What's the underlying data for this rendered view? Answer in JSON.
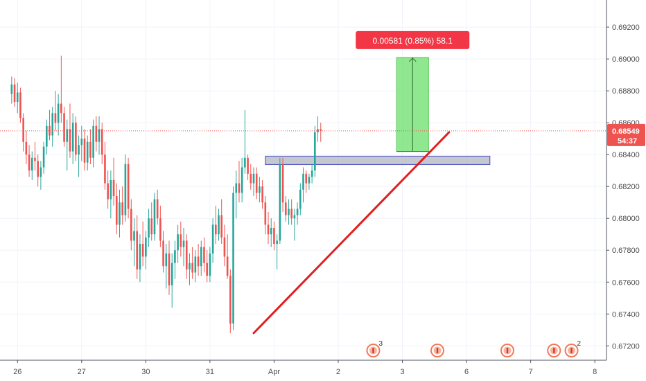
{
  "chart_data": {
    "type": "candlestick",
    "title": "",
    "y_ticks": [
      0.692,
      0.69,
      0.688,
      0.686,
      0.684,
      0.682,
      0.68,
      0.678,
      0.676,
      0.674,
      0.672
    ],
    "y_tick_labels": [
      "0.69200",
      "0.69000",
      "0.68800",
      "0.68600",
      "0.68400",
      "0.68200",
      "0.68000",
      "0.67800",
      "0.67600",
      "0.67400",
      "0.67200"
    ],
    "ylim": [
      0.6711,
      0.6937
    ],
    "x_labels": [
      {
        "label": "26",
        "index": 2
      },
      {
        "label": "27",
        "index": 24
      },
      {
        "label": "30",
        "index": 46
      },
      {
        "label": "31",
        "index": 68
      },
      {
        "label": "Apr",
        "index": 90
      },
      {
        "label": "2",
        "index": 112
      },
      {
        "label": "3",
        "index": 134
      },
      {
        "label": "6",
        "index": 156
      },
      {
        "label": "7",
        "index": 178
      },
      {
        "label": "8",
        "index": 200
      }
    ],
    "x_range": [
      -4,
      204
    ],
    "current_price": 0.68549,
    "current_price_label": "0.68549",
    "countdown_label": "54:37",
    "colors": {
      "up": "#26a69a",
      "down": "#ef5350",
      "trendline": "#e01f1f",
      "zone_fill": "#b2b5be",
      "zone_border": "#5b5fc7",
      "measure_fill": "#7be37b",
      "measure_label_bg": "#f23645",
      "price_line": "#ef5350"
    },
    "support_zone": {
      "x_start": 87,
      "x_end": 164,
      "price_top": 0.6839,
      "price_bottom": 0.68338
    },
    "trendline": {
      "x1": 83,
      "y1": 0.6728,
      "x2": 150,
      "y2": 0.6854
    },
    "measure": {
      "x_start": 132,
      "x_end": 143,
      "price_low": 0.6842,
      "price_high": 0.6901,
      "label": "0.00581 (0.85%) 58.1"
    },
    "events": [
      {
        "index": 124,
        "count": "3"
      },
      {
        "index": 146,
        "count": ""
      },
      {
        "index": 170,
        "count": ""
      },
      {
        "index": 186,
        "count": ""
      },
      {
        "index": 192,
        "count": "2"
      }
    ],
    "candles": [
      [
        0.6878,
        0.6889,
        0.6872,
        0.6884
      ],
      [
        0.6884,
        0.6888,
        0.687,
        0.6873
      ],
      [
        0.6873,
        0.6885,
        0.6866,
        0.6879
      ],
      [
        0.6879,
        0.6882,
        0.686,
        0.6863
      ],
      [
        0.6863,
        0.6866,
        0.6842,
        0.6848
      ],
      [
        0.6848,
        0.6855,
        0.6834,
        0.684
      ],
      [
        0.684,
        0.6846,
        0.6826,
        0.683
      ],
      [
        0.683,
        0.6842,
        0.6824,
        0.6838
      ],
      [
        0.6838,
        0.6848,
        0.683,
        0.6836
      ],
      [
        0.6836,
        0.684,
        0.682,
        0.6826
      ],
      [
        0.6826,
        0.6836,
        0.6818,
        0.6832
      ],
      [
        0.6832,
        0.6848,
        0.6828,
        0.6845
      ],
      [
        0.6845,
        0.6862,
        0.684,
        0.6858
      ],
      [
        0.6858,
        0.6868,
        0.6849,
        0.6852
      ],
      [
        0.6852,
        0.687,
        0.6845,
        0.6866
      ],
      [
        0.6866,
        0.688,
        0.6855,
        0.686
      ],
      [
        0.686,
        0.6878,
        0.6852,
        0.6872
      ],
      [
        0.6872,
        0.6902,
        0.686,
        0.6866
      ],
      [
        0.6866,
        0.687,
        0.6845,
        0.6848
      ],
      [
        0.6848,
        0.6862,
        0.683,
        0.6856
      ],
      [
        0.6856,
        0.6872,
        0.6838,
        0.6842
      ],
      [
        0.6842,
        0.6866,
        0.6834,
        0.686
      ],
      [
        0.686,
        0.6864,
        0.6836,
        0.684
      ],
      [
        0.684,
        0.6852,
        0.6826,
        0.6846
      ],
      [
        0.6846,
        0.6858,
        0.6836,
        0.685
      ],
      [
        0.685,
        0.6856,
        0.683,
        0.6835
      ],
      [
        0.6835,
        0.6852,
        0.683,
        0.6848
      ],
      [
        0.6848,
        0.6856,
        0.6834,
        0.6838
      ],
      [
        0.6838,
        0.6862,
        0.6832,
        0.6858
      ],
      [
        0.6858,
        0.6864,
        0.6842,
        0.6848
      ],
      [
        0.6848,
        0.6864,
        0.684,
        0.6856
      ],
      [
        0.6856,
        0.686,
        0.6834,
        0.684
      ],
      [
        0.684,
        0.6848,
        0.6818,
        0.6822
      ],
      [
        0.6822,
        0.683,
        0.6806,
        0.6812
      ],
      [
        0.6812,
        0.683,
        0.68,
        0.6824
      ],
      [
        0.6824,
        0.6838,
        0.6808,
        0.6814
      ],
      [
        0.6814,
        0.6822,
        0.679,
        0.6796
      ],
      [
        0.6796,
        0.6818,
        0.6788,
        0.681
      ],
      [
        0.681,
        0.682,
        0.6796,
        0.6802
      ],
      [
        0.6802,
        0.684,
        0.6798,
        0.6834
      ],
      [
        0.6834,
        0.6838,
        0.68,
        0.6806
      ],
      [
        0.6806,
        0.6812,
        0.678,
        0.6786
      ],
      [
        0.6786,
        0.68,
        0.677,
        0.6792
      ],
      [
        0.6792,
        0.6802,
        0.6762,
        0.6768
      ],
      [
        0.6768,
        0.679,
        0.676,
        0.6784
      ],
      [
        0.6784,
        0.6798,
        0.677,
        0.6776
      ],
      [
        0.6776,
        0.6792,
        0.6768,
        0.6788
      ],
      [
        0.6788,
        0.6806,
        0.6782,
        0.68
      ],
      [
        0.68,
        0.681,
        0.6786,
        0.679
      ],
      [
        0.679,
        0.6816,
        0.6786,
        0.6812
      ],
      [
        0.6812,
        0.6818,
        0.6796,
        0.68
      ],
      [
        0.68,
        0.6808,
        0.6782,
        0.6786
      ],
      [
        0.6786,
        0.6792,
        0.6766,
        0.677
      ],
      [
        0.677,
        0.6784,
        0.6756,
        0.6778
      ],
      [
        0.6778,
        0.6786,
        0.6752,
        0.6758
      ],
      [
        0.6758,
        0.6778,
        0.6744,
        0.6772
      ],
      [
        0.6772,
        0.6786,
        0.6762,
        0.678
      ],
      [
        0.678,
        0.6796,
        0.6772,
        0.679
      ],
      [
        0.679,
        0.6798,
        0.6776,
        0.6782
      ],
      [
        0.6782,
        0.6794,
        0.677,
        0.6786
      ],
      [
        0.6786,
        0.679,
        0.6762,
        0.6768
      ],
      [
        0.6768,
        0.6778,
        0.6758,
        0.6772
      ],
      [
        0.6772,
        0.6782,
        0.6762,
        0.6766
      ],
      [
        0.6766,
        0.678,
        0.676,
        0.6776
      ],
      [
        0.6776,
        0.6784,
        0.6764,
        0.677
      ],
      [
        0.677,
        0.6786,
        0.6764,
        0.6782
      ],
      [
        0.6782,
        0.6788,
        0.6766,
        0.6772
      ],
      [
        0.6772,
        0.678,
        0.676,
        0.6764
      ],
      [
        0.6764,
        0.6782,
        0.676,
        0.6778
      ],
      [
        0.6778,
        0.68,
        0.6772,
        0.6796
      ],
      [
        0.6796,
        0.6808,
        0.6784,
        0.679
      ],
      [
        0.679,
        0.6806,
        0.6786,
        0.6802
      ],
      [
        0.6802,
        0.6812,
        0.6784,
        0.6788
      ],
      [
        0.6788,
        0.6796,
        0.677,
        0.6776
      ],
      [
        0.6776,
        0.679,
        0.6762,
        0.6764
      ],
      [
        0.6764,
        0.6768,
        0.6728,
        0.6734
      ],
      [
        0.6734,
        0.682,
        0.673,
        0.6816
      ],
      [
        0.6816,
        0.683,
        0.68,
        0.6822
      ],
      [
        0.6822,
        0.6836,
        0.681,
        0.6816
      ],
      [
        0.6816,
        0.6838,
        0.681,
        0.6832
      ],
      [
        0.6832,
        0.6868,
        0.6828,
        0.6838
      ],
      [
        0.6838,
        0.684,
        0.6824,
        0.6828
      ],
      [
        0.6828,
        0.6834,
        0.6818,
        0.6822
      ],
      [
        0.6822,
        0.6832,
        0.6814,
        0.6828
      ],
      [
        0.6828,
        0.6832,
        0.6812,
        0.6816
      ],
      [
        0.6816,
        0.6826,
        0.681,
        0.682
      ],
      [
        0.682,
        0.6824,
        0.6806,
        0.681
      ],
      [
        0.681,
        0.6814,
        0.679,
        0.6796
      ],
      [
        0.6796,
        0.6804,
        0.6784,
        0.679
      ],
      [
        0.679,
        0.68,
        0.6782,
        0.6794
      ],
      [
        0.6794,
        0.6798,
        0.678,
        0.6784
      ],
      [
        0.6784,
        0.679,
        0.6768,
        0.6786
      ],
      [
        0.6786,
        0.6838,
        0.6784,
        0.6834
      ],
      [
        0.6834,
        0.6838,
        0.6804,
        0.681
      ],
      [
        0.681,
        0.6814,
        0.6798,
        0.6802
      ],
      [
        0.6802,
        0.6812,
        0.6796,
        0.6806
      ],
      [
        0.6806,
        0.6812,
        0.6796,
        0.68
      ],
      [
        0.68,
        0.6806,
        0.6786,
        0.6802
      ],
      [
        0.6802,
        0.681,
        0.6796,
        0.6806
      ],
      [
        0.6806,
        0.6822,
        0.6802,
        0.6818
      ],
      [
        0.6818,
        0.6832,
        0.681,
        0.6828
      ],
      [
        0.6828,
        0.683,
        0.6816,
        0.6822
      ],
      [
        0.6822,
        0.6828,
        0.6818,
        0.6826
      ],
      [
        0.6826,
        0.6834,
        0.6822,
        0.683
      ],
      [
        0.683,
        0.6858,
        0.6826,
        0.6854
      ],
      [
        0.6854,
        0.6864,
        0.6848,
        0.6856
      ],
      [
        0.6856,
        0.686,
        0.6848,
        0.6855
      ]
    ]
  }
}
